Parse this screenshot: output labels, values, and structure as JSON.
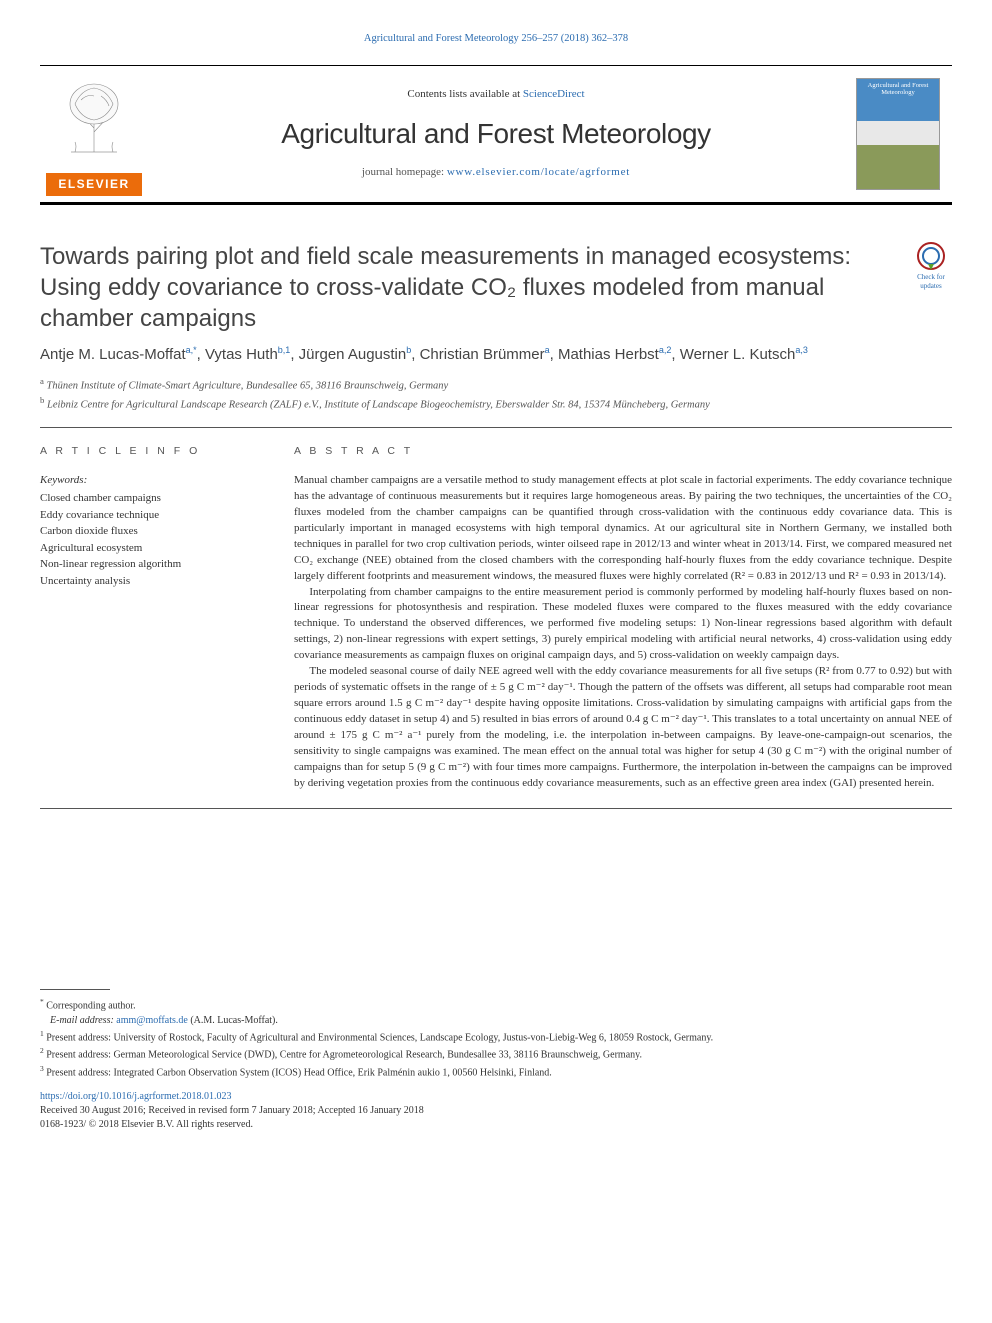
{
  "top_link": "Agricultural and Forest Meteorology 256–257 (2018) 362–378",
  "header": {
    "contents_pre": "Contents lists available at ",
    "contents_link": "ScienceDirect",
    "journal": "Agricultural and Forest Meteorology",
    "homepage_pre": "journal homepage: ",
    "homepage_url": "www.elsevier.com/locate/agrformet",
    "elsevier": "ELSEVIER",
    "cover_title": "Agricultural and Forest Meteorology"
  },
  "title": "Towards pairing plot and field scale measurements in managed ecosystems: Using eddy covariance to cross-validate CO₂ fluxes modeled from manual chamber campaigns",
  "update_badge": "Check for updates",
  "authors_html": "Antje M. Lucas-Moffat<sup>a,*</sup>, Vytas Huth<sup>b,1</sup>, Jürgen Augustin<sup>b</sup>, Christian Brümmer<sup>a</sup>, Mathias Herbst<sup>a,2</sup>, Werner L. Kutsch<sup>a,3</sup>",
  "affiliations": {
    "a": "Thünen Institute of Climate-Smart Agriculture, Bundesallee 65, 38116 Braunschweig, Germany",
    "b": "Leibniz Centre for Agricultural Landscape Research (ZALF) e.V., Institute of Landscape Biogeochemistry, Eberswalder Str. 84, 15374 Müncheberg, Germany"
  },
  "labels": {
    "article_info": "A R T I C L E  I N F O",
    "abstract": "A B S T R A C T",
    "keywords": "Keywords:"
  },
  "keywords": [
    "Closed chamber campaigns",
    "Eddy covariance technique",
    "Carbon dioxide fluxes",
    "Agricultural ecosystem",
    "Non-linear regression algorithm",
    "Uncertainty analysis"
  ],
  "abstract": [
    "Manual chamber campaigns are a versatile method to study management effects at plot scale in factorial experiments. The eddy covariance technique has the advantage of continuous measurements but it requires large homogeneous areas. By pairing the two techniques, the uncertainties of the CO₂ fluxes modeled from the chamber campaigns can be quantified through cross-validation with the continuous eddy covariance data. This is particularly important in managed ecosystems with high temporal dynamics. At our agricultural site in Northern Germany, we installed both techniques in parallel for two crop cultivation periods, winter oilseed rape in 2012/13 and winter wheat in 2013/14. First, we compared measured net CO₂ exchange (NEE) obtained from the closed chambers with the corresponding half-hourly fluxes from the eddy covariance technique. Despite largely different footprints and measurement windows, the measured fluxes were highly correlated (R² = 0.83 in 2012/13 und R² = 0.93 in 2013/14).",
    "Interpolating from chamber campaigns to the entire measurement period is commonly performed by modeling half-hourly fluxes based on non-linear regressions for photosynthesis and respiration. These modeled fluxes were compared to the fluxes measured with the eddy covariance technique. To understand the observed differences, we performed five modeling setups: 1) Non-linear regressions based algorithm with default settings, 2) non-linear regressions with expert settings, 3) purely empirical modeling with artificial neural networks, 4) cross-validation using eddy covariance measurements as campaign fluxes on original campaign days, and 5) cross-validation on weekly campaign days.",
    "The modeled seasonal course of daily NEE agreed well with the eddy covariance measurements for all five setups (R² from 0.77 to 0.92) but with periods of systematic offsets in the range of ± 5 g C m⁻² day⁻¹. Though the pattern of the offsets was different, all setups had comparable root mean square errors around 1.5 g C m⁻² day⁻¹ despite having opposite limitations. Cross-validation by simulating campaigns with artificial gaps from the continuous eddy dataset in setup 4) and 5) resulted in bias errors of around 0.4 g C m⁻² day⁻¹. This translates to a total uncertainty on annual NEE of around ± 175 g C m⁻² a⁻¹ purely from the modeling, i.e. the interpolation in-between campaigns. By leave-one-campaign-out scenarios, the sensitivity to single campaigns was examined. The mean effect on the annual total was higher for setup 4 (30 g C m⁻²) with the original number of campaigns than for setup 5 (9 g C m⁻²) with four times more campaigns. Furthermore, the interpolation in-between the campaigns can be improved by deriving vegetation proxies from the continuous eddy covariance measurements, such as an effective green area index (GAI) presented herein."
  ],
  "footnotes": {
    "corr": "Corresponding author.",
    "email_label": "E-mail address: ",
    "email": "amm@moffats.de",
    "email_name": " (A.M. Lucas-Moffat).",
    "n1": "Present address: University of Rostock, Faculty of Agricultural and Environmental Sciences, Landscape Ecology, Justus-von-Liebig-Weg 6, 18059 Rostock, Germany.",
    "n2": "Present address: German Meteorological Service (DWD), Centre for Agrometeorological Research, Bundesallee 33, 38116 Braunschweig, Germany.",
    "n3": "Present address: Integrated Carbon Observation System (ICOS) Head Office, Erik Palménin aukio 1, 00560 Helsinki, Finland."
  },
  "doi": "https://doi.org/10.1016/j.agrformet.2018.01.023",
  "received": "Received 30 August 2016; Received in revised form 7 January 2018; Accepted 16 January 2018",
  "issn": "0168-1923/ © 2018 Elsevier B.V. All rights reserved.",
  "colors": {
    "link": "#2b6cb0",
    "elsevier_orange": "#eb6c0b",
    "text": "#333333"
  }
}
